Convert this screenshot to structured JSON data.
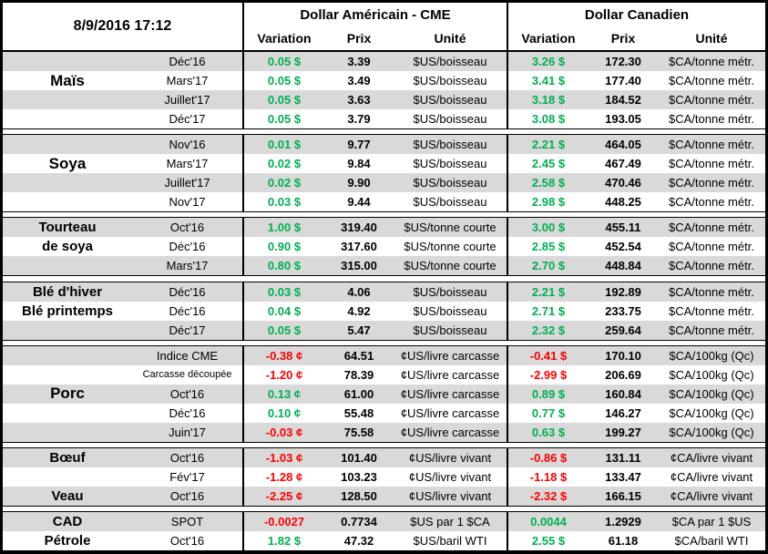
{
  "header": {
    "timestamp": "8/9/2016 17:12",
    "us_section": {
      "title": "Dollar Américain - CME",
      "columns": [
        "Variation",
        "Prix",
        "Unité"
      ]
    },
    "ca_section": {
      "title": "Dollar Canadien",
      "columns": [
        "Variation",
        "Prix",
        "Unité"
      ]
    }
  },
  "colors": {
    "green": "#00B050",
    "red": "#FF0000",
    "row_shade": "#D9D9D9",
    "border": "#000000"
  },
  "groups": [
    {
      "rows": [
        {
          "label": "",
          "month": "Déc'16",
          "us": {
            "variation": "0.05 $",
            "trend": "up",
            "price": "3.39",
            "unit": "$US/boisseau"
          },
          "ca": {
            "variation": "3.26 $",
            "trend": "up",
            "price": "172.30",
            "unit": "$CA/tonne métr."
          }
        },
        {
          "label": "Maïs",
          "label_size": "lg",
          "month": "Mars'17",
          "us": {
            "variation": "0.05 $",
            "trend": "up",
            "price": "3.49",
            "unit": "$US/boisseau"
          },
          "ca": {
            "variation": "3.41 $",
            "trend": "up",
            "price": "177.40",
            "unit": "$CA/tonne métr."
          }
        },
        {
          "label": "",
          "month": "Juillet'17",
          "us": {
            "variation": "0.05 $",
            "trend": "up",
            "price": "3.63",
            "unit": "$US/boisseau"
          },
          "ca": {
            "variation": "3.18 $",
            "trend": "up",
            "price": "184.52",
            "unit": "$CA/tonne métr."
          }
        },
        {
          "label": "",
          "month": "Déc'17",
          "us": {
            "variation": "0.05 $",
            "trend": "up",
            "price": "3.79",
            "unit": "$US/boisseau"
          },
          "ca": {
            "variation": "3.08 $",
            "trend": "up",
            "price": "193.05",
            "unit": "$CA/tonne métr."
          }
        }
      ]
    },
    {
      "rows": [
        {
          "label": "",
          "month": "Nov'16",
          "us": {
            "variation": "0.01 $",
            "trend": "up",
            "price": "9.77",
            "unit": "$US/boisseau"
          },
          "ca": {
            "variation": "2.21 $",
            "trend": "up",
            "price": "464.05",
            "unit": "$CA/tonne métr."
          }
        },
        {
          "label": "Soya",
          "label_size": "lg",
          "month": "Mars'17",
          "us": {
            "variation": "0.02 $",
            "trend": "up",
            "price": "9.84",
            "unit": "$US/boisseau"
          },
          "ca": {
            "variation": "2.45 $",
            "trend": "up",
            "price": "467.49",
            "unit": "$CA/tonne métr."
          }
        },
        {
          "label": "",
          "month": "Juillet'17",
          "us": {
            "variation": "0.02 $",
            "trend": "up",
            "price": "9.90",
            "unit": "$US/boisseau"
          },
          "ca": {
            "variation": "2.58 $",
            "trend": "up",
            "price": "470.46",
            "unit": "$CA/tonne métr."
          }
        },
        {
          "label": "",
          "month": "Nov'17",
          "us": {
            "variation": "0.03 $",
            "trend": "up",
            "price": "9.44",
            "unit": "$US/boisseau"
          },
          "ca": {
            "variation": "2.98 $",
            "trend": "up",
            "price": "448.25",
            "unit": "$CA/tonne métr."
          }
        }
      ]
    },
    {
      "rows": [
        {
          "label": "Tourteau",
          "month": "Oct'16",
          "us": {
            "variation": "1.00 $",
            "trend": "up",
            "price": "319.40",
            "unit": "$US/tonne courte"
          },
          "ca": {
            "variation": "3.00 $",
            "trend": "up",
            "price": "455.11",
            "unit": "$CA/tonne métr."
          }
        },
        {
          "label": "de soya",
          "month": "Déc'16",
          "us": {
            "variation": "0.90 $",
            "trend": "up",
            "price": "317.60",
            "unit": "$US/tonne courte"
          },
          "ca": {
            "variation": "2.85 $",
            "trend": "up",
            "price": "452.54",
            "unit": "$CA/tonne métr."
          }
        },
        {
          "label": "",
          "month": "Mars'17",
          "us": {
            "variation": "0.80 $",
            "trend": "up",
            "price": "315.00",
            "unit": "$US/tonne courte"
          },
          "ca": {
            "variation": "2.70 $",
            "trend": "up",
            "price": "448.84",
            "unit": "$CA/tonne métr."
          }
        }
      ]
    },
    {
      "rows": [
        {
          "label": "Blé d'hiver",
          "month": "Déc'16",
          "us": {
            "variation": "0.03 $",
            "trend": "up",
            "price": "4.06",
            "unit": "$US/boisseau"
          },
          "ca": {
            "variation": "2.21 $",
            "trend": "up",
            "price": "192.89",
            "unit": "$CA/tonne métr."
          }
        },
        {
          "label": "Blé printemps",
          "month": "Déc'16",
          "us": {
            "variation": "0.04 $",
            "trend": "up",
            "price": "4.92",
            "unit": "$US/boisseau"
          },
          "ca": {
            "variation": "2.71 $",
            "trend": "up",
            "price": "233.75",
            "unit": "$CA/tonne métr."
          }
        },
        {
          "label": "",
          "month": "Déc'17",
          "us": {
            "variation": "0.05 $",
            "trend": "up",
            "price": "5.47",
            "unit": "$US/boisseau"
          },
          "ca": {
            "variation": "2.32 $",
            "trend": "up",
            "price": "259.64",
            "unit": "$CA/tonne métr."
          }
        }
      ]
    },
    {
      "rows": [
        {
          "label": "",
          "month": "Indice CME",
          "us": {
            "variation": "-0.38 ¢",
            "trend": "down",
            "price": "64.51",
            "unit": "¢US/livre carcasse"
          },
          "ca": {
            "variation": "-0.41 $",
            "trend": "down",
            "price": "170.10",
            "unit": "$CA/100kg (Qc)"
          }
        },
        {
          "label": "",
          "month": "Carcasse découpée",
          "month_small": true,
          "us": {
            "variation": "-1.20 ¢",
            "trend": "down",
            "price": "78.39",
            "unit": "¢US/livre carcasse"
          },
          "ca": {
            "variation": "-2.99 $",
            "trend": "down",
            "price": "206.69",
            "unit": "$CA/100kg (Qc)"
          }
        },
        {
          "label": "Porc",
          "label_size": "lg",
          "month": "Oct'16",
          "us": {
            "variation": "0.13 ¢",
            "trend": "up",
            "price": "61.00",
            "unit": "¢US/livre carcasse"
          },
          "ca": {
            "variation": "0.89 $",
            "trend": "up",
            "price": "160.84",
            "unit": "$CA/100kg (Qc)"
          }
        },
        {
          "label": "",
          "month": "Déc'16",
          "us": {
            "variation": "0.10 ¢",
            "trend": "up",
            "price": "55.48",
            "unit": "¢US/livre carcasse"
          },
          "ca": {
            "variation": "0.77 $",
            "trend": "up",
            "price": "146.27",
            "unit": "$CA/100kg (Qc)"
          }
        },
        {
          "label": "",
          "month": "Juin'17",
          "us": {
            "variation": "-0.03 ¢",
            "trend": "down",
            "price": "75.58",
            "unit": "¢US/livre carcasse"
          },
          "ca": {
            "variation": "0.63 $",
            "trend": "up",
            "price": "199.27",
            "unit": "$CA/100kg (Qc)"
          }
        }
      ]
    },
    {
      "rows": [
        {
          "label": "Bœuf",
          "month": "Oct'16",
          "us": {
            "variation": "-1.03 ¢",
            "trend": "down",
            "price": "101.40",
            "unit": "¢US/livre vivant"
          },
          "ca": {
            "variation": "-0.86 $",
            "trend": "down",
            "price": "131.11",
            "unit": "¢CA/livre vivant"
          }
        },
        {
          "label": "",
          "month": "Fév'17",
          "us": {
            "variation": "-1.28 ¢",
            "trend": "down",
            "price": "103.23",
            "unit": "¢US/livre vivant"
          },
          "ca": {
            "variation": "-1.18 $",
            "trend": "down",
            "price": "133.47",
            "unit": "¢CA/livre vivant"
          }
        },
        {
          "label": "Veau",
          "month": "Oct'16",
          "us": {
            "variation": "-2.25 ¢",
            "trend": "down",
            "price": "128.50",
            "unit": "¢US/livre vivant"
          },
          "ca": {
            "variation": "-2.32 $",
            "trend": "down",
            "price": "166.15",
            "unit": "¢CA/livre vivant"
          }
        }
      ]
    },
    {
      "rows": [
        {
          "label": "CAD",
          "month": "SPOT",
          "us": {
            "variation": "-0.0027",
            "trend": "down",
            "price": "0.7734",
            "unit": "$US par 1 $CA"
          },
          "ca": {
            "variation": "0.0044",
            "trend": "up",
            "price": "1.2929",
            "unit": "$CA par 1 $US"
          }
        },
        {
          "label": "Pétrole",
          "month": "Oct'16",
          "us": {
            "variation": "1.82 $",
            "trend": "up",
            "price": "47.32",
            "unit": "$US/baril WTI"
          },
          "ca": {
            "variation": "2.55 $",
            "trend": "up",
            "price": "61.18",
            "unit": "$CA/baril WTI"
          }
        }
      ]
    }
  ]
}
